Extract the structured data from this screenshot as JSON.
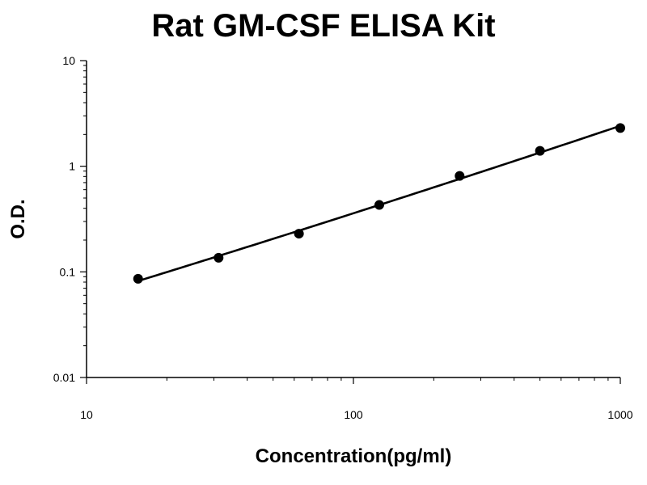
{
  "chart_data": {
    "type": "scatter",
    "title": "Rat GM-CSF ELISA Kit",
    "xlabel": "Concentration(pg/ml)",
    "ylabel": "O.D.",
    "x_scale": "log",
    "y_scale": "log",
    "xlim": [
      10,
      1000
    ],
    "ylim": [
      0.01,
      10
    ],
    "x_ticks": [
      "10",
      "100",
      "1000"
    ],
    "y_ticks": [
      "0.01",
      "0.1",
      "1",
      "10"
    ],
    "grid": false,
    "legend": "none",
    "series": [
      {
        "points": {
          "x": [
            15.6,
            31.25,
            62.5,
            125,
            250,
            500,
            1000
          ],
          "y": [
            0.086,
            0.136,
            0.23,
            0.43,
            0.81,
            1.4,
            2.3
          ]
        },
        "fit_curve": true
      }
    ],
    "colors": {
      "marker": "#000000",
      "line": "#000000",
      "axis": "#000000"
    }
  }
}
